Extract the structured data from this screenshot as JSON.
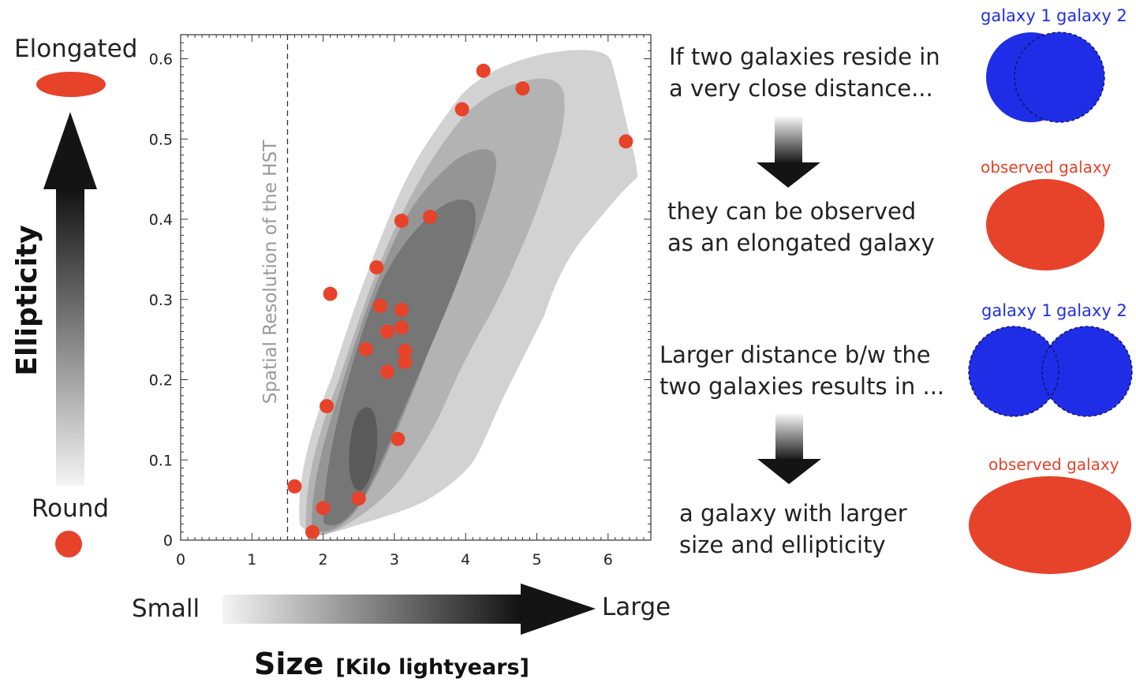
{
  "chart_data": {
    "type": "scatter",
    "title": "",
    "xlabel": "Size",
    "xlabel_unit": "[Kilo lightyears]",
    "ylabel": "Ellipticity",
    "xlim": [
      0,
      6.6
    ],
    "ylim": [
      0,
      0.63
    ],
    "x_ticks": [
      "0",
      "1",
      "2",
      "3",
      "4",
      "5",
      "6"
    ],
    "y_ticks": [
      "0",
      "0.1",
      "0.2",
      "0.3",
      "0.4",
      "0.5",
      "0.6"
    ],
    "y_tick_values": [
      0,
      0.1,
      0.2,
      0.3,
      0.4,
      0.5,
      0.6
    ],
    "grid": false,
    "reference_line": {
      "x": 1.5,
      "style": "dashed",
      "label": "Spatial Resolution of the HST"
    },
    "points": [
      {
        "x": 4.25,
        "y": 0.585
      },
      {
        "x": 4.8,
        "y": 0.563
      },
      {
        "x": 3.95,
        "y": 0.537
      },
      {
        "x": 6.25,
        "y": 0.497
      },
      {
        "x": 3.5,
        "y": 0.403
      },
      {
        "x": 3.1,
        "y": 0.398
      },
      {
        "x": 2.75,
        "y": 0.34
      },
      {
        "x": 2.1,
        "y": 0.307
      },
      {
        "x": 2.8,
        "y": 0.292
      },
      {
        "x": 3.1,
        "y": 0.287
      },
      {
        "x": 3.1,
        "y": 0.265
      },
      {
        "x": 2.9,
        "y": 0.26
      },
      {
        "x": 2.6,
        "y": 0.238
      },
      {
        "x": 3.15,
        "y": 0.236
      },
      {
        "x": 3.15,
        "y": 0.222
      },
      {
        "x": 2.9,
        "y": 0.21
      },
      {
        "x": 2.05,
        "y": 0.167
      },
      {
        "x": 3.05,
        "y": 0.126
      },
      {
        "x": 1.6,
        "y": 0.067
      },
      {
        "x": 2.5,
        "y": 0.052
      },
      {
        "x": 2.0,
        "y": 0.04
      },
      {
        "x": 1.85,
        "y": 0.01
      }
    ],
    "density_levels": 5,
    "colors": {
      "points": "#e6432a",
      "contours": [
        "#d2d2d2",
        "#b3b3b3",
        "#959595",
        "#767676",
        "#5a5a5a"
      ]
    }
  },
  "axis_annotations": {
    "top": "Elongated",
    "bottom": "Round",
    "left": "Small",
    "right": "Large"
  },
  "explanation": {
    "step1_line1": "If two galaxies reside in",
    "step1_line2": "a very close distance...",
    "step2_line1": "they can be observed",
    "step2_line2": "as an elongated galaxy",
    "step3_line1": "Larger distance b/w the",
    "step3_line2": "two galaxies results in ...",
    "step4_line1": "a galaxy with larger",
    "step4_line2": "size and ellipticity"
  },
  "diagram_labels": {
    "galaxy1": "galaxy 1",
    "galaxy2": "galaxy 2",
    "observed": "observed galaxy"
  },
  "colors": {
    "galaxy_blue": "#1f2de6",
    "observed_red": "#e6432a",
    "label_blue": "#2030e0"
  }
}
